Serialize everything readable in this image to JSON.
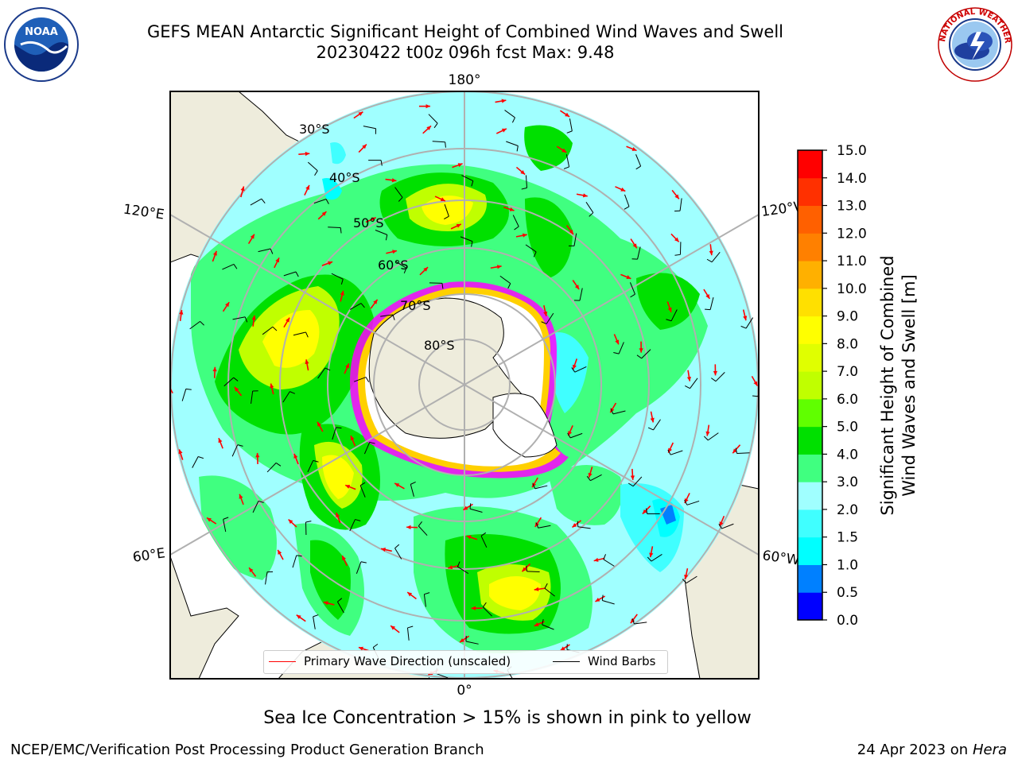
{
  "header": {
    "title_line1": "GEFS MEAN Antarctic Significant Height of Combined Wind Waves and Swell",
    "title_line2": "20230422 t00z 096h fcst   Max: 9.48"
  },
  "logos": {
    "left": {
      "icon": "noaa-logo",
      "text": "NOAA",
      "ring_text": "NATIONAL OCEANIC AND ATMOSPHERIC ADMINISTRATION · U.S. DEPARTMENT OF COMMERCE"
    },
    "right": {
      "icon": "nws-logo",
      "ring_text": "NATIONAL WEATHER SERVICE"
    }
  },
  "map": {
    "projection": "south polar stereographic",
    "longitude_labels": {
      "top": "180°",
      "bottom": "0°",
      "upper_left": "120°E",
      "lower_left": "60°E",
      "upper_right": "120°W",
      "lower_right": "60°W"
    },
    "latitude_labels": [
      "30°S",
      "40°S",
      "50°S",
      "60°S",
      "70°S",
      "80°S"
    ],
    "land_color": "#eeecdc",
    "ice_colors": [
      "#ff00ff",
      "#ffa000",
      "#ffff00"
    ]
  },
  "colorbar": {
    "label_line1": "Significant Height of Combined",
    "label_line2": "Wind Waves and Swell [m]",
    "levels": [
      "0.0",
      "0.5",
      "1.0",
      "1.5",
      "2.0",
      "3.0",
      "4.0",
      "5.0",
      "6.0",
      "7.0",
      "8.0",
      "9.0",
      "10.0",
      "11.0",
      "12.0",
      "13.0",
      "14.0",
      "15.0"
    ],
    "colors": [
      "#0000ff",
      "#0080ff",
      "#00ffff",
      "#40ffff",
      "#a0ffff",
      "#40ff80",
      "#00e000",
      "#60ff00",
      "#c0ff00",
      "#e0ff00",
      "#ffff00",
      "#ffe000",
      "#ffb000",
      "#ff8000",
      "#ff6000",
      "#ff3000",
      "#ff0000"
    ]
  },
  "legend": {
    "wave_label": "Primary Wave Direction (unscaled)",
    "wave_color": "#ff0000",
    "wind_label": "Wind Barbs",
    "wind_color": "#000000"
  },
  "caption": "Sea Ice Concentration > 15% is shown in pink to yellow",
  "footer": {
    "left": "NCEP/EMC/Verification Post Processing Product Generation Branch",
    "right_date": "24 Apr 2023 on ",
    "right_host": "Hera"
  }
}
